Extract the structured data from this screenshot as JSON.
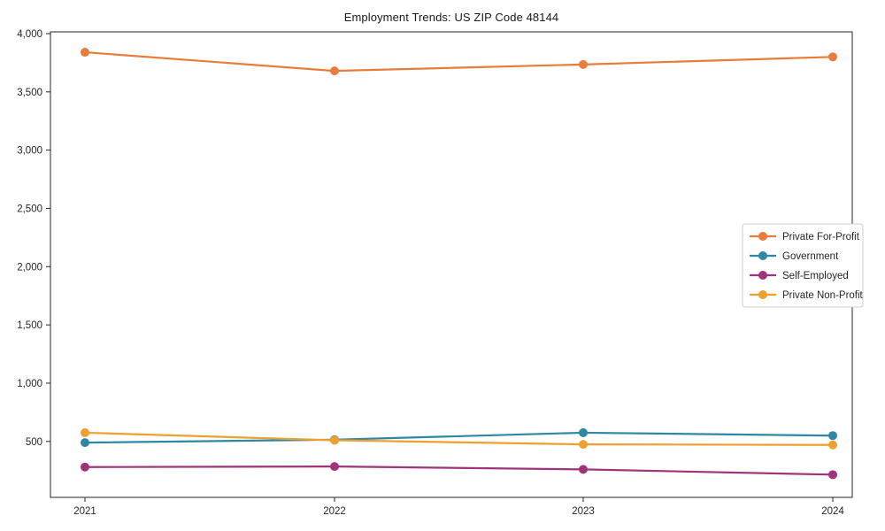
{
  "chart_data": {
    "type": "line",
    "title": "Employment Trends: US ZIP Code 48144",
    "x": [
      2021,
      2022,
      2023,
      2024
    ],
    "x_tick_labels": [
      "2021",
      "2022",
      "2023",
      "2024"
    ],
    "series": [
      {
        "name": "Private For-Profit",
        "color": "#e87d3b",
        "values": [
          3840,
          3680,
          3735,
          3800
        ]
      },
      {
        "name": "Government",
        "color": "#2e87a5",
        "values": [
          490,
          515,
          575,
          550
        ]
      },
      {
        "name": "Self-Employed",
        "color": "#a0337c",
        "values": [
          280,
          285,
          260,
          215
        ]
      },
      {
        "name": "Private Non-Profit",
        "color": "#efa02f",
        "values": [
          575,
          510,
          475,
          470
        ]
      }
    ],
    "xlabel": "",
    "ylabel": "",
    "ylim": [
      20,
      4015
    ],
    "yticks": [
      500,
      1000,
      1500,
      2000,
      2500,
      3000,
      3500,
      4000
    ],
    "ytick_labels": [
      "500",
      "1,000",
      "1,500",
      "2,000",
      "2,500",
      "3,000",
      "3,500",
      "4,000"
    ],
    "grid": false,
    "axes_box": true,
    "legend": {
      "position": "center-right",
      "border_color": "#cccccc",
      "background": "#ffffff"
    },
    "colors": {
      "spine": "#262626",
      "tick_text": "#262626",
      "title_text": "#1a1a1a"
    }
  }
}
